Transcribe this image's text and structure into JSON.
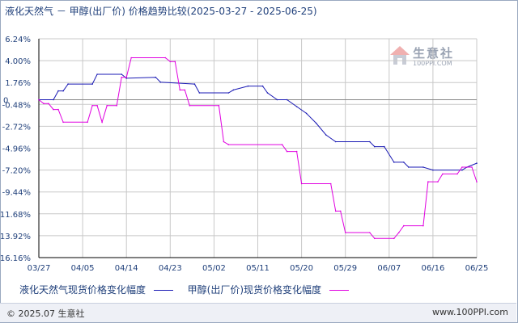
{
  "title": "液化天然气 － 甲醇(出厂价) 价格趋势比较(2025-03-27 - 2025-06-25)",
  "watermark": {
    "text": "生意社",
    "url": "100PPI.COM"
  },
  "footer": {
    "copyright": "© 2025.07 生意社",
    "site": "www.100PPI.com"
  },
  "colors": {
    "lng": "#1a1ab4",
    "methanol": "#e000e0",
    "grid": "#c8c8c8",
    "axis": "#000000"
  },
  "chart_data": {
    "type": "line",
    "ylabel_format": "percent",
    "ylim": [
      -16.16,
      6.24
    ],
    "yticks": [
      "6.24%",
      "4.00%",
      "1.76%",
      "-0.48%",
      "-2.72%",
      "-4.96%",
      "-7.20%",
      "-9.44%",
      "-11.68%",
      "-13.92%",
      "-16.16%"
    ],
    "ytick_values": [
      6.24,
      4.0,
      1.76,
      -0.48,
      -2.72,
      -4.96,
      -7.2,
      -9.44,
      -11.68,
      -13.92,
      -16.16
    ],
    "zero_label": "0",
    "x_start": "2025-03-27",
    "x_end": "2025-06-25",
    "xticks": [
      "03/27",
      "04/05",
      "04/14",
      "04/23",
      "05/02",
      "05/11",
      "05/20",
      "05/29",
      "06/07",
      "06/16",
      "06/25"
    ],
    "grid": true,
    "legend_position": "bottom",
    "series": [
      {
        "name": "液化天然气现货价格变化幅度",
        "key": "lng",
        "points": [
          [
            "2025-03-27",
            0.0
          ],
          [
            "2025-03-30",
            0.0
          ],
          [
            "2025-03-31",
            0.9
          ],
          [
            "2025-04-01",
            0.9
          ],
          [
            "2025-04-02",
            1.6
          ],
          [
            "2025-04-07",
            1.6
          ],
          [
            "2025-04-08",
            2.6
          ],
          [
            "2025-04-13",
            2.6
          ],
          [
            "2025-04-14",
            2.2
          ],
          [
            "2025-04-20",
            2.3
          ],
          [
            "2025-04-21",
            1.8
          ],
          [
            "2025-04-28",
            1.6
          ],
          [
            "2025-04-29",
            0.7
          ],
          [
            "2025-05-05",
            0.7
          ],
          [
            "2025-05-06",
            1.0
          ],
          [
            "2025-05-09",
            1.4
          ],
          [
            "2025-05-12",
            1.4
          ],
          [
            "2025-05-13",
            0.7
          ],
          [
            "2025-05-15",
            0.0
          ],
          [
            "2025-05-17",
            0.0
          ],
          [
            "2025-05-19",
            -0.7
          ],
          [
            "2025-05-21",
            -1.4
          ],
          [
            "2025-05-23",
            -2.4
          ],
          [
            "2025-05-25",
            -3.6
          ],
          [
            "2025-05-27",
            -4.3
          ],
          [
            "2025-06-03",
            -4.3
          ],
          [
            "2025-06-04",
            -4.8
          ],
          [
            "2025-06-06",
            -4.8
          ],
          [
            "2025-06-08",
            -6.4
          ],
          [
            "2025-06-10",
            -6.4
          ],
          [
            "2025-06-11",
            -6.9
          ],
          [
            "2025-06-14",
            -6.9
          ],
          [
            "2025-06-16",
            -7.2
          ],
          [
            "2025-06-22",
            -7.2
          ],
          [
            "2025-06-23",
            -6.9
          ],
          [
            "2025-06-25",
            -6.5
          ]
        ]
      },
      {
        "name": "甲醇(出厂价)现货价格变化幅度",
        "key": "methanol",
        "points": [
          [
            "2025-03-27",
            0.0
          ],
          [
            "2025-03-28",
            -0.4
          ],
          [
            "2025-03-29",
            -0.4
          ],
          [
            "2025-03-30",
            -1.0
          ],
          [
            "2025-03-31",
            -1.0
          ],
          [
            "2025-04-01",
            -2.3
          ],
          [
            "2025-04-06",
            -2.3
          ],
          [
            "2025-04-07",
            -0.6
          ],
          [
            "2025-04-08",
            -0.6
          ],
          [
            "2025-04-09",
            -2.3
          ],
          [
            "2025-04-10",
            -0.6
          ],
          [
            "2025-04-12",
            -0.6
          ],
          [
            "2025-04-13",
            2.3
          ],
          [
            "2025-04-14",
            2.3
          ],
          [
            "2025-04-15",
            4.3
          ],
          [
            "2025-04-22",
            4.3
          ],
          [
            "2025-04-23",
            3.9
          ],
          [
            "2025-04-24",
            3.9
          ],
          [
            "2025-04-25",
            1.0
          ],
          [
            "2025-04-26",
            1.0
          ],
          [
            "2025-04-27",
            -0.6
          ],
          [
            "2025-05-03",
            -0.6
          ],
          [
            "2025-05-04",
            -4.3
          ],
          [
            "2025-05-05",
            -4.6
          ],
          [
            "2025-05-16",
            -4.6
          ],
          [
            "2025-05-17",
            -5.3
          ],
          [
            "2025-05-19",
            -5.3
          ],
          [
            "2025-05-20",
            -8.6
          ],
          [
            "2025-05-26",
            -8.6
          ],
          [
            "2025-05-27",
            -11.4
          ],
          [
            "2025-05-28",
            -11.4
          ],
          [
            "2025-05-29",
            -13.6
          ],
          [
            "2025-06-03",
            -13.6
          ],
          [
            "2025-06-04",
            -14.2
          ],
          [
            "2025-06-08",
            -14.2
          ],
          [
            "2025-06-09",
            -13.6
          ],
          [
            "2025-06-10",
            -12.9
          ],
          [
            "2025-06-14",
            -12.9
          ],
          [
            "2025-06-15",
            -8.4
          ],
          [
            "2025-06-17",
            -8.4
          ],
          [
            "2025-06-18",
            -7.6
          ],
          [
            "2025-06-21",
            -7.6
          ],
          [
            "2025-06-22",
            -6.9
          ],
          [
            "2025-06-24",
            -6.9
          ],
          [
            "2025-06-25",
            -8.4
          ]
        ]
      }
    ]
  }
}
